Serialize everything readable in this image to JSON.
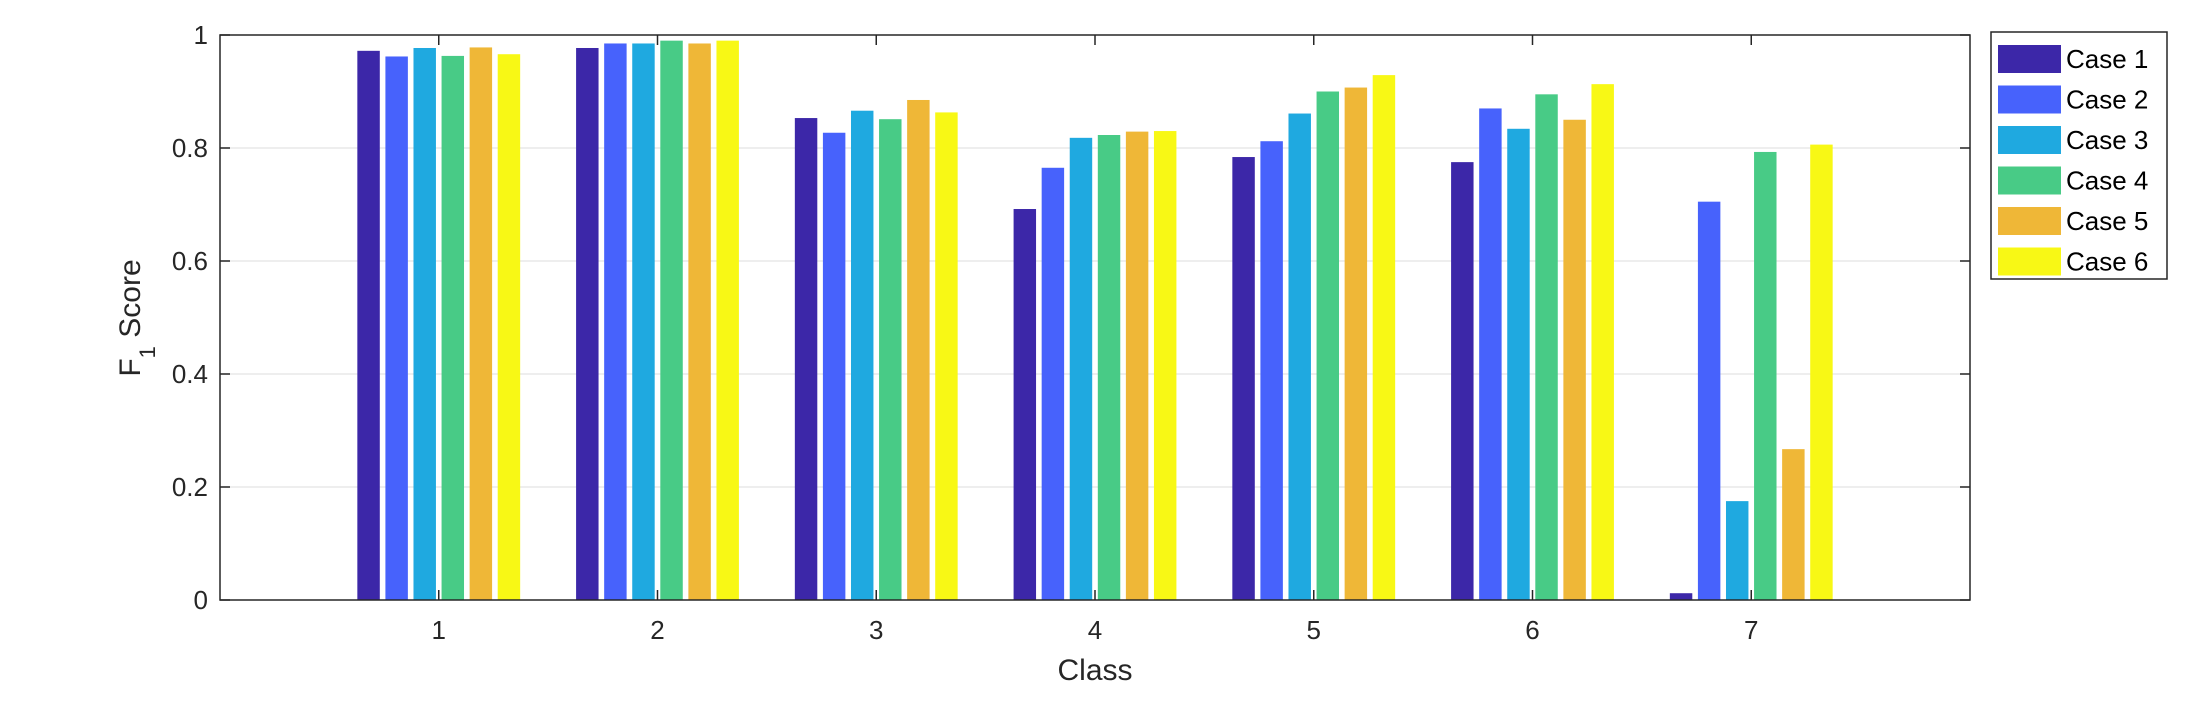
{
  "chart_data": {
    "type": "bar",
    "categories": [
      "1",
      "2",
      "3",
      "4",
      "5",
      "6",
      "7"
    ],
    "series": [
      {
        "name": "Case 1",
        "color": "#3c27a8",
        "values": [
          0.972,
          0.977,
          0.853,
          0.692,
          0.784,
          0.775,
          0.012
        ]
      },
      {
        "name": "Case 2",
        "color": "#4762fc",
        "values": [
          0.962,
          0.985,
          0.827,
          0.765,
          0.812,
          0.87,
          0.705
        ]
      },
      {
        "name": "Case 3",
        "color": "#1fa9e0",
        "values": [
          0.977,
          0.985,
          0.866,
          0.818,
          0.861,
          0.834,
          0.175
        ]
      },
      {
        "name": "Case 4",
        "color": "#48cb86",
        "values": [
          0.963,
          0.99,
          0.851,
          0.823,
          0.9,
          0.895,
          0.793
        ]
      },
      {
        "name": "Case 5",
        "color": "#efb737",
        "values": [
          0.978,
          0.985,
          0.885,
          0.829,
          0.907,
          0.85,
          0.267
        ]
      },
      {
        "name": "Case 6",
        "color": "#f8f815",
        "values": [
          0.966,
          0.99,
          0.863,
          0.83,
          0.929,
          0.913,
          0.806
        ]
      }
    ],
    "xlabel": "Class",
    "ylabel": {
      "main": "F",
      "subscript": "1",
      "suffix": " Score"
    },
    "xlim": [
      0,
      8
    ],
    "ylim": [
      0,
      1
    ],
    "yticks": [
      {
        "value": 0,
        "label": "0"
      },
      {
        "value": 0.2,
        "label": "0.2"
      },
      {
        "value": 0.4,
        "label": "0.4"
      },
      {
        "value": 0.6,
        "label": "0.6"
      },
      {
        "value": 0.8,
        "label": "0.8"
      },
      {
        "value": 1,
        "label": "1"
      }
    ],
    "grid": "horizontal",
    "legend_position": "outside-top-right"
  }
}
